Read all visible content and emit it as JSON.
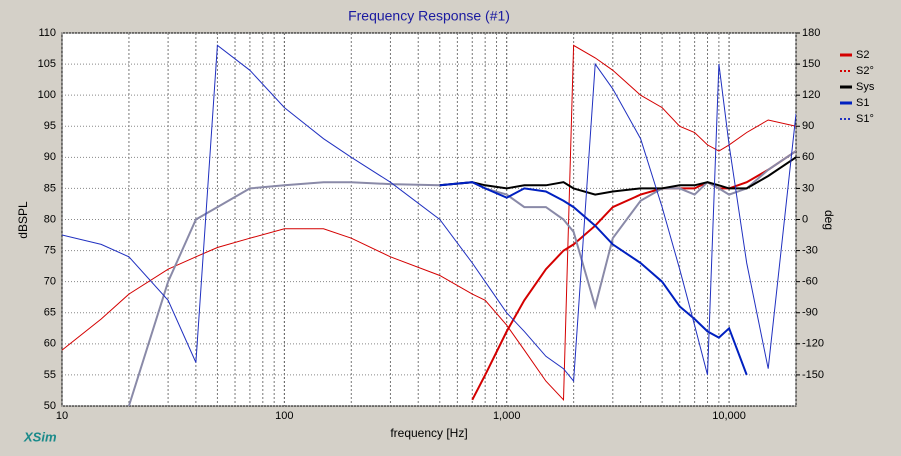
{
  "chart_data": {
    "type": "line",
    "title": "Frequency Response (#1)",
    "x_label": "frequency [Hz]",
    "y_label": "dBSPL",
    "y2_label": "deg",
    "brand": "XSim",
    "x": [
      10,
      15,
      20,
      30,
      40,
      50,
      70,
      100,
      150,
      200,
      300,
      500,
      700,
      800,
      1000,
      1200,
      1500,
      1800,
      2000,
      2500,
      3000,
      4000,
      5000,
      6000,
      7000,
      8000,
      9000,
      10000,
      12000,
      15000,
      20000
    ],
    "xlim": [
      10,
      20000
    ],
    "xscale": "log",
    "xticks": [
      10,
      100,
      {
        "value": 1000,
        "label": "1,000"
      },
      {
        "value": 10000,
        "label": "10,000"
      }
    ],
    "xgrid_minor": [
      20,
      30,
      40,
      50,
      60,
      70,
      80,
      90,
      200,
      300,
      400,
      500,
      600,
      700,
      800,
      900,
      2000,
      3000,
      4000,
      5000,
      6000,
      7000,
      8000,
      9000,
      20000
    ],
    "ylim": [
      50,
      110
    ],
    "yticks": [
      50,
      55,
      60,
      65,
      70,
      75,
      80,
      85,
      90,
      95,
      100,
      105,
      110
    ],
    "y2lim": [
      -180,
      180
    ],
    "y2ticks": [
      -150,
      -120,
      -90,
      -60,
      -30,
      0,
      30,
      60,
      90,
      120,
      150,
      180
    ],
    "grid": true,
    "legend": "right",
    "series": [
      {
        "name": "S2",
        "color": "#d40000",
        "width": 2,
        "values": [
          null,
          null,
          null,
          null,
          null,
          null,
          null,
          null,
          null,
          null,
          null,
          null,
          51,
          55,
          62,
          67,
          72,
          75,
          76,
          79,
          82,
          84,
          85,
          85,
          85,
          86,
          85,
          85,
          86,
          88,
          91
        ]
      },
      {
        "name": "S2°",
        "color": "#d40000",
        "width": 1,
        "axis": "y2",
        "values": [
          -126,
          -96,
          -72,
          -48,
          -36,
          -27,
          -18,
          -9,
          -9,
          -18,
          -36,
          -54,
          -72,
          -78,
          -102,
          -126,
          -156,
          -174,
          168,
          156,
          144,
          120,
          108,
          90,
          84,
          72,
          66,
          72,
          84,
          96,
          90
        ]
      },
      {
        "name": null,
        "color": "#8a8aa8",
        "width": 2,
        "values": [
          null,
          null,
          50,
          70,
          80,
          82,
          85,
          85.5,
          86,
          86,
          85.7,
          85.5,
          86,
          85,
          84,
          82,
          82,
          80,
          78,
          66,
          77,
          83,
          85,
          85,
          84,
          86,
          85,
          84,
          85,
          88,
          91
        ]
      },
      {
        "name": "Sys",
        "color": "#000000",
        "width": 2,
        "values": [
          null,
          null,
          null,
          null,
          null,
          null,
          null,
          null,
          null,
          null,
          null,
          85.5,
          86,
          85.5,
          85,
          85.5,
          85.5,
          86,
          85,
          84,
          84.5,
          85,
          85,
          85.5,
          85.5,
          86,
          85.5,
          85,
          85,
          87,
          90
        ]
      },
      {
        "name": "S1",
        "color": "#0020c0",
        "width": 2,
        "values": [
          null,
          null,
          null,
          null,
          null,
          null,
          null,
          null,
          null,
          null,
          null,
          85.5,
          86,
          85,
          83.5,
          85,
          84.5,
          83,
          82,
          79,
          76,
          73,
          70,
          66,
          64,
          62,
          61,
          62.5,
          55,
          null,
          null
        ]
      },
      {
        "name": "S1°",
        "color": "#2030c0",
        "width": 1,
        "axis": "y2",
        "values": [
          -15,
          -24,
          -36,
          -78,
          -138,
          168,
          144,
          108,
          78,
          60,
          36,
          0,
          -42,
          -60,
          -90,
          -108,
          -132,
          -144,
          -156,
          150,
          126,
          78,
          12,
          -48,
          -102,
          -150,
          150,
          72,
          -42,
          -144,
          102
        ]
      }
    ]
  }
}
